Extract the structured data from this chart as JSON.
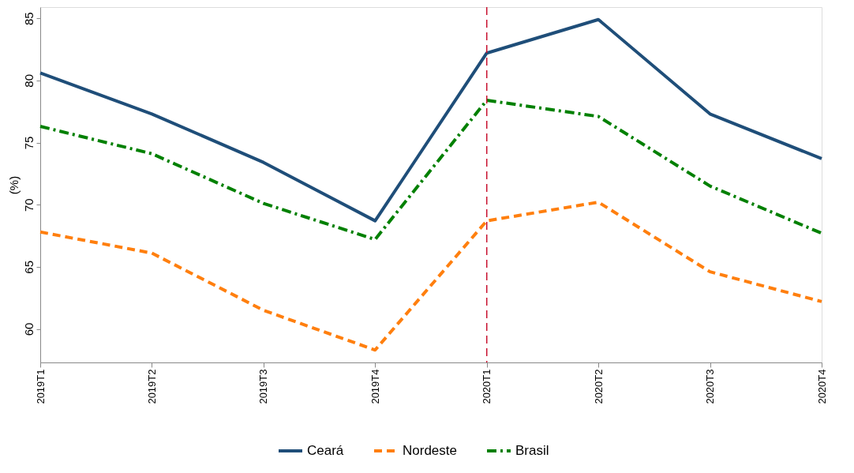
{
  "chart_data": {
    "type": "line",
    "ylabel": "(%)",
    "categories": [
      "2019T1",
      "2019T2",
      "2019T3",
      "2019T4",
      "2020T1",
      "2020T2",
      "2020T3",
      "2020T4"
    ],
    "series": [
      {
        "name": "Ceará",
        "color": "#1f4e79",
        "line_style": "solid",
        "values": [
          80.6,
          77.3,
          73.4,
          68.7,
          82.2,
          84.9,
          77.3,
          73.7
        ]
      },
      {
        "name": "Nordeste",
        "color": "#ff7f0e",
        "line_style": "dashed",
        "values": [
          67.8,
          66.1,
          61.5,
          58.3,
          68.7,
          70.2,
          64.6,
          62.2
        ]
      },
      {
        "name": "Brasil",
        "color": "#008000",
        "line_style": "dashdot",
        "values": [
          76.3,
          74.1,
          70.1,
          67.2,
          78.4,
          77.1,
          71.5,
          67.7
        ]
      }
    ],
    "ylim": [
      57.3,
      85.9
    ],
    "yticks": [
      60,
      65,
      70,
      75,
      80,
      85
    ],
    "ref_lines": [
      {
        "axis": "x",
        "value": "2020T1",
        "color": "#c8102e",
        "line_style": "dashed"
      }
    ],
    "grid": false,
    "legend": "bottom",
    "marker": "none"
  }
}
